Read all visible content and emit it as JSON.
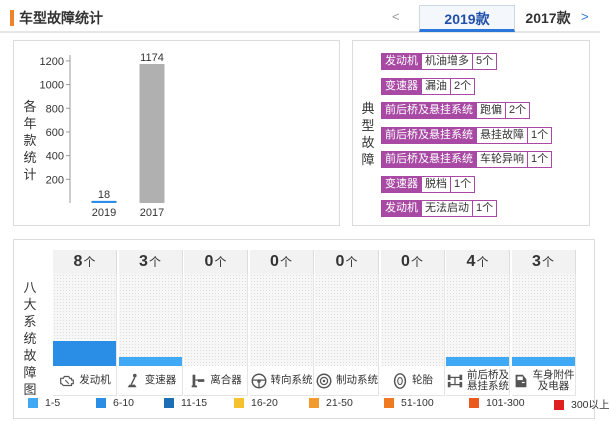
{
  "header": {
    "title": "车型故障统计",
    "prev": "<",
    "tabs": [
      {
        "label": "2019款"
      },
      {
        "label": "2017款"
      }
    ],
    "next": ">"
  },
  "bar_panel": {
    "ylabel": "各年款统计"
  },
  "chart_data": {
    "type": "bar",
    "categories": [
      "2019",
      "2017"
    ],
    "values": [
      18,
      1174
    ],
    "ylabel": "各年款统计",
    "yticks": [
      200,
      400,
      600,
      800,
      1000,
      1200
    ],
    "ylim": [
      0,
      1250
    ],
    "colors": [
      "#2b8ee6",
      "#b0b0b0"
    ],
    "grid": false
  },
  "typical_faults": {
    "label": "典型故障",
    "items": [
      {
        "category": "发动机",
        "name": "机油增多",
        "count": "5个"
      },
      {
        "category": "变速器",
        "name": "漏油",
        "count": "2个"
      },
      {
        "category": "前后桥及悬挂系统",
        "name": "跑偏",
        "count": "2个"
      },
      {
        "category": "前后桥及悬挂系统",
        "name": "悬挂故障",
        "count": "1个"
      },
      {
        "category": "前后桥及悬挂系统",
        "name": "车轮异响",
        "count": "1个"
      },
      {
        "category": "变速器",
        "name": "脱档",
        "count": "1个"
      },
      {
        "category": "发动机",
        "name": "无法启动",
        "count": "1个"
      }
    ]
  },
  "systems": {
    "label": "八大系统故障图",
    "unit": "个",
    "items": [
      {
        "count": "8",
        "label": "发动机",
        "icon": "engine-icon",
        "level": 0.27,
        "color": "#2b8ee6"
      },
      {
        "count": "3",
        "label": "变速器",
        "icon": "gear-shift-icon",
        "level": 0.1,
        "color": "#3fa9f5"
      },
      {
        "count": "0",
        "label": "离合器",
        "icon": "clutch-pedal-icon",
        "level": 0,
        "color": "#3fa9f5"
      },
      {
        "count": "0",
        "label": "转向系统",
        "icon": "steering-wheel-icon",
        "level": 0,
        "color": "#3fa9f5"
      },
      {
        "count": "0",
        "label": "制动系统",
        "icon": "brake-disc-icon",
        "level": 0,
        "color": "#3fa9f5"
      },
      {
        "count": "0",
        "label": "轮胎",
        "icon": "tire-icon",
        "level": 0,
        "color": "#3fa9f5"
      },
      {
        "count": "4",
        "label": "前后桥及悬挂系统",
        "label_line1": "前后桥及",
        "label_line2": "悬挂系统",
        "icon": "axle-icon",
        "level": 0.1,
        "color": "#3fa9f5"
      },
      {
        "count": "3",
        "label": "车身附件及电器",
        "label_line1": "车身附件",
        "label_line2": "及电器",
        "icon": "car-door-icon",
        "level": 0.1,
        "color": "#3fa9f5"
      }
    ]
  },
  "legend": [
    {
      "label": "1-5",
      "color": "#3fa9f5"
    },
    {
      "label": "6-10",
      "color": "#2b8ee6"
    },
    {
      "label": "11-15",
      "color": "#1c6fb5"
    },
    {
      "label": "16-20",
      "color": "#f5c12e"
    },
    {
      "label": "21-50",
      "color": "#f39a2e"
    },
    {
      "label": "51-100",
      "color": "#f07a22"
    },
    {
      "label": "101-300",
      "color": "#ea5a1e"
    },
    {
      "label": "300以上",
      "color": "#e02020"
    }
  ]
}
